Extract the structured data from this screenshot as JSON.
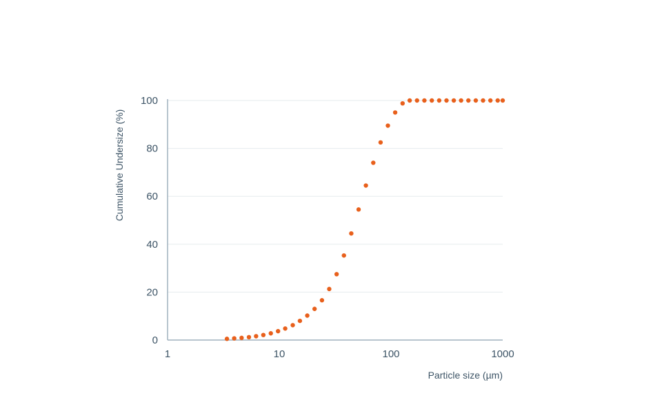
{
  "chart_data": {
    "type": "scatter",
    "title": "",
    "xlabel": "Particle size (µm)",
    "ylabel": "Cumulative Undersize (%)",
    "x_scale": "log",
    "xlim": [
      1,
      1000
    ],
    "ylim": [
      0,
      100
    ],
    "x_ticks": [
      "1",
      "10",
      "100",
      "1000"
    ],
    "y_ticks": [
      "0",
      "20",
      "40",
      "60",
      "80",
      "100"
    ],
    "grid": "horizontal",
    "colors": {
      "series": "#e8601c",
      "axis": "#9fb0bd",
      "grid": "#e6ebee",
      "text": "#3d5466"
    },
    "series": [
      {
        "x": [
          3.4,
          3.95,
          4.6,
          5.35,
          6.2,
          7.2,
          8.4,
          9.75,
          11.3,
          13.2,
          15.3,
          17.8,
          20.7,
          24.1,
          28.0,
          32.6,
          37.9,
          44.1,
          51.3,
          59.6,
          69.4,
          80.7,
          93.8,
          109,
          127,
          147,
          171,
          199,
          232,
          270,
          314,
          365,
          424,
          493,
          574,
          667,
          776,
          902,
          1000
        ],
        "y": [
          0.5,
          0.7,
          0.9,
          1.2,
          1.6,
          2.1,
          2.8,
          3.7,
          4.8,
          6.2,
          8.0,
          10.2,
          13.0,
          16.6,
          21.3,
          27.5,
          35.3,
          44.5,
          54.5,
          64.5,
          74.0,
          82.5,
          89.5,
          95.0,
          98.8,
          100,
          100,
          100,
          100,
          100,
          100,
          100,
          100,
          100,
          100,
          100,
          100,
          100,
          100
        ]
      }
    ]
  }
}
